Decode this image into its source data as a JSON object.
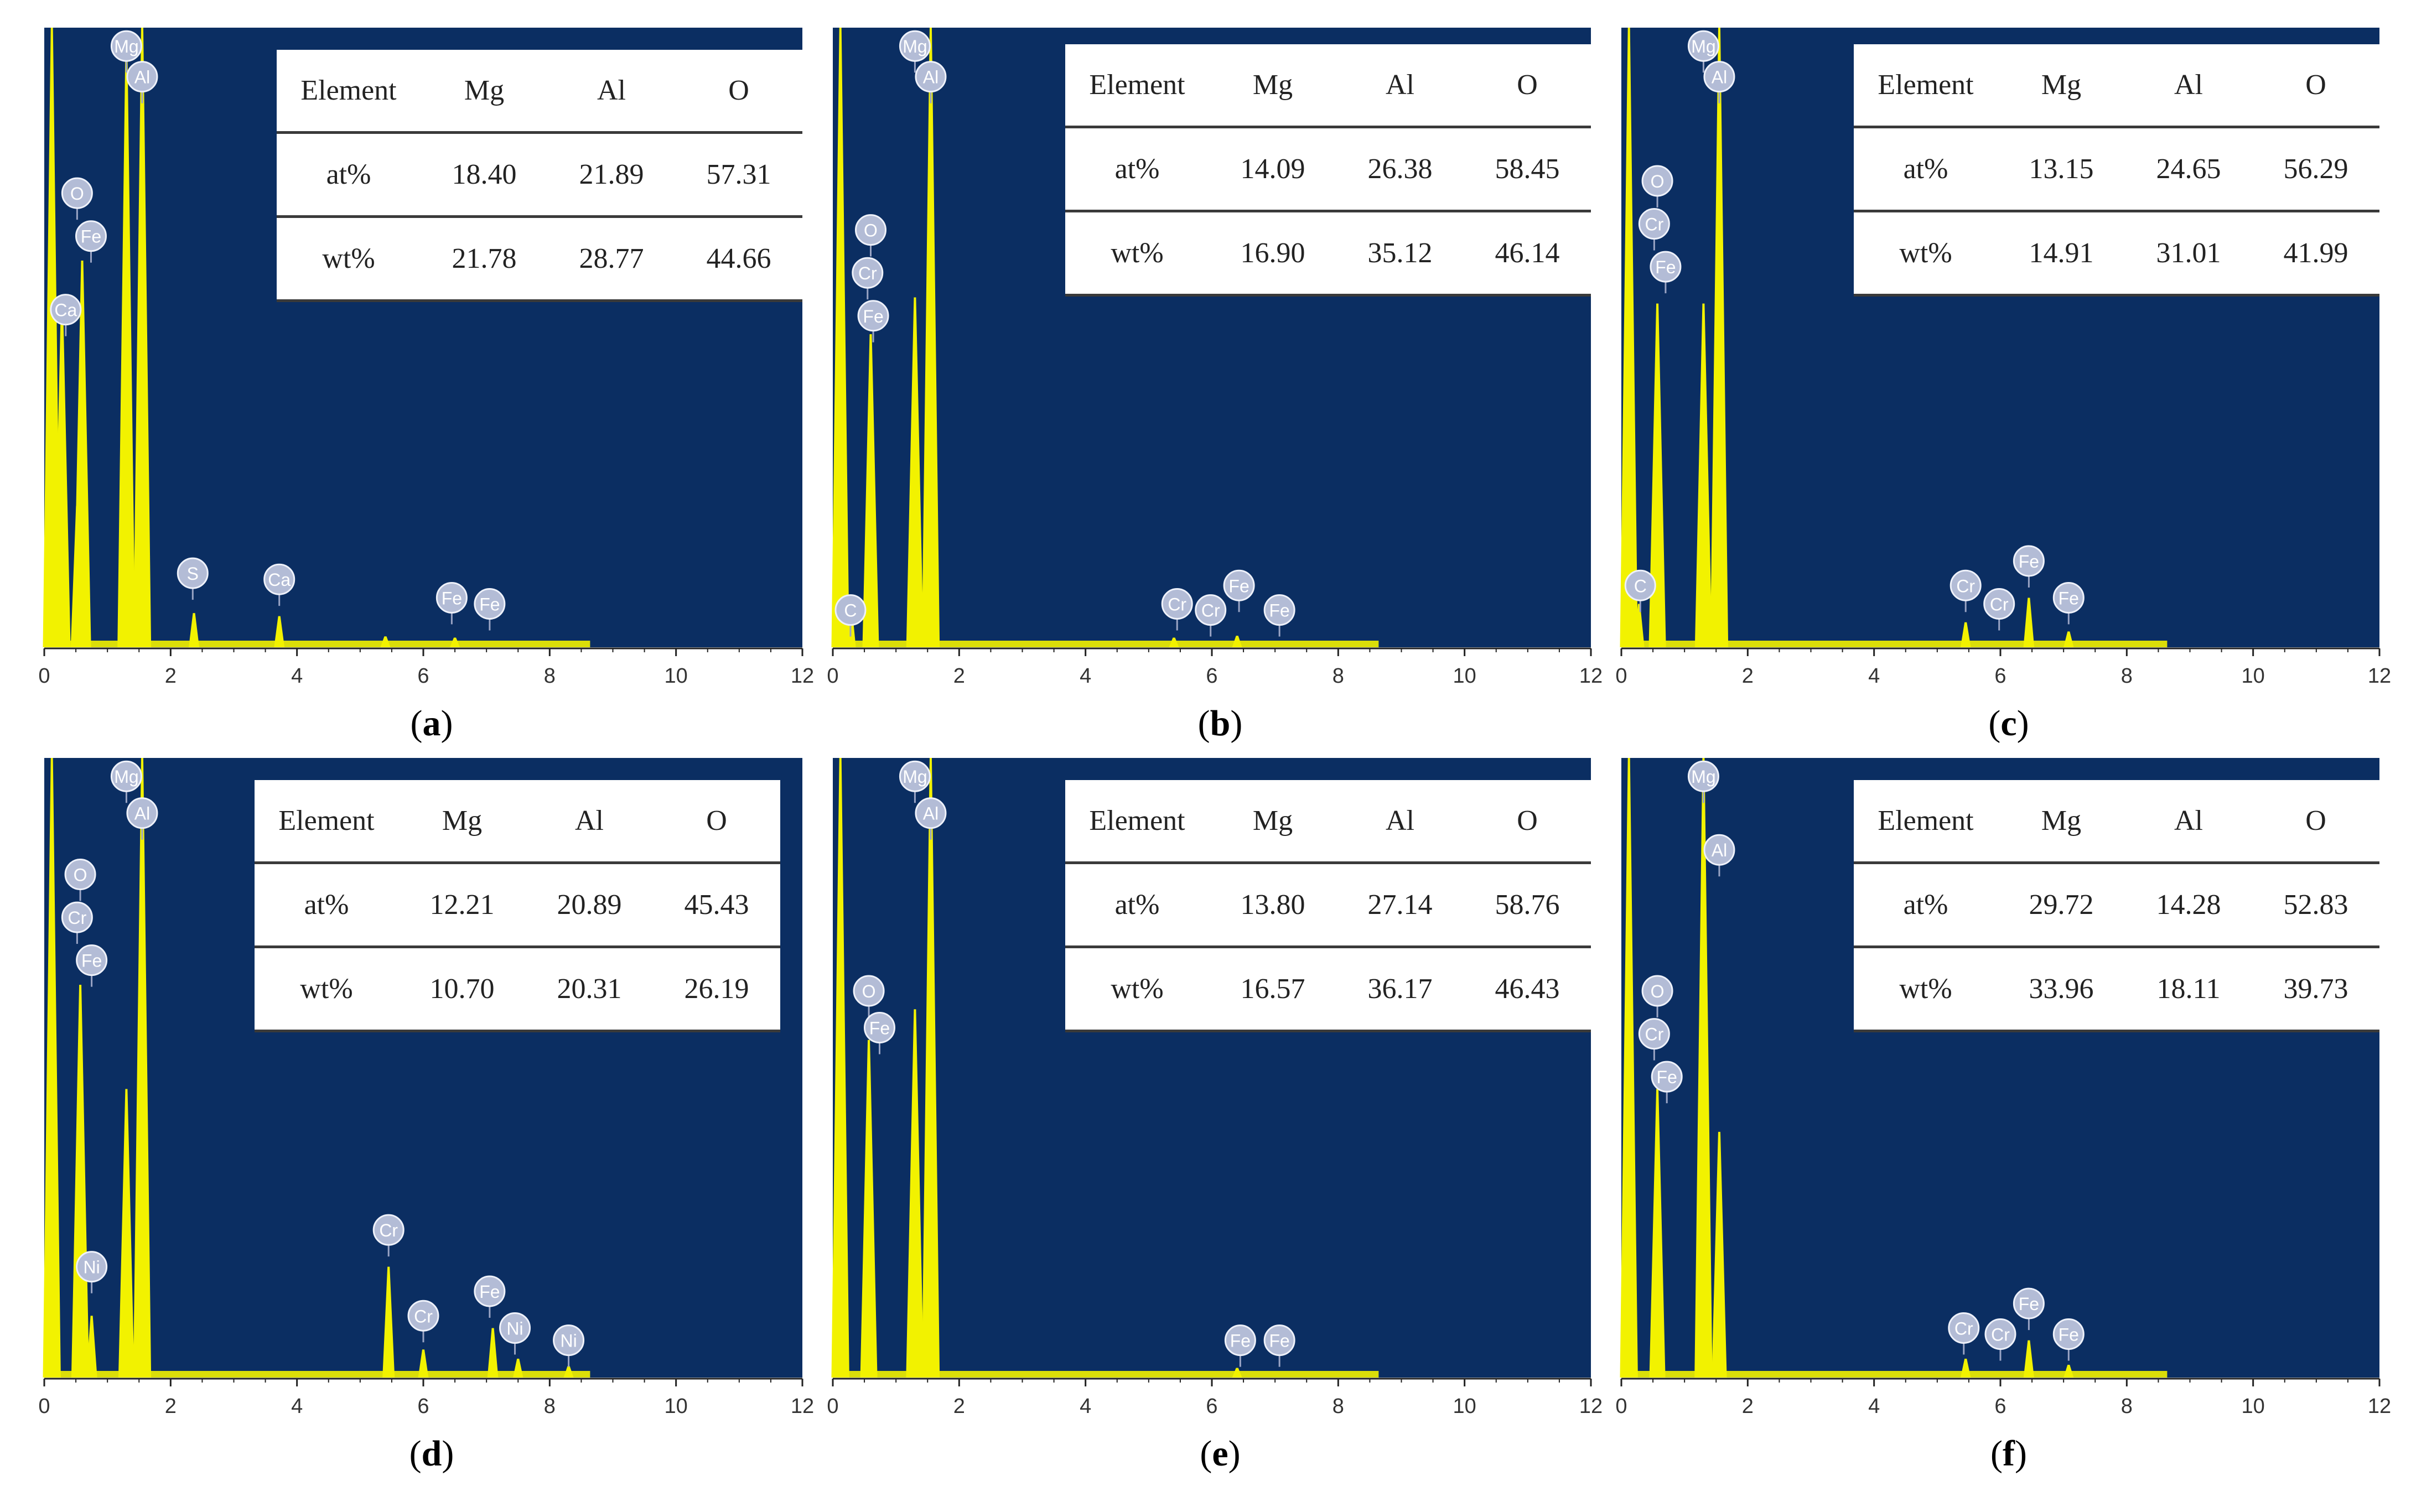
{
  "axis": {
    "ticks": [
      0,
      2,
      4,
      6,
      8,
      10,
      12
    ],
    "xlim": [
      0,
      12
    ]
  },
  "colors": {
    "plot_background": "#0b2e62",
    "spectrum": "#f2f200",
    "label_bubble": "#b3bcd6",
    "axis": "#222222"
  },
  "chart_data": [
    {
      "type": "area",
      "panel_label": "a",
      "x_label": "",
      "xlim": [
        0,
        12
      ],
      "peaks": [
        {
          "x": 0.12,
          "y": 100
        },
        {
          "x": 0.28,
          "y": 55
        },
        {
          "x": 0.52,
          "y": 22
        },
        {
          "x": 0.6,
          "y": 62
        },
        {
          "x": 1.3,
          "y": 96
        },
        {
          "x": 1.55,
          "y": 100
        },
        {
          "x": 2.37,
          "y": 4.5
        },
        {
          "x": 3.72,
          "y": 4
        },
        {
          "x": 5.4,
          "y": 0.7
        },
        {
          "x": 6.5,
          "y": 0.5
        }
      ],
      "peak_labels": [
        {
          "label": "Mg",
          "x": 1.3,
          "y": 97
        },
        {
          "label": "Al",
          "x": 1.55,
          "y": 92
        },
        {
          "label": "O",
          "x": 0.52,
          "y": 73
        },
        {
          "label": "Fe",
          "x": 0.74,
          "y": 66
        },
        {
          "label": "Ca",
          "x": 0.34,
          "y": 54
        },
        {
          "label": "S",
          "x": 2.35,
          "y": 11
        },
        {
          "label": "Ca",
          "x": 3.72,
          "y": 10
        },
        {
          "label": "Fe",
          "x": 6.45,
          "y": 7
        },
        {
          "label": "Fe",
          "x": 7.05,
          "y": 6
        }
      ],
      "table": {
        "header": [
          "Element",
          "Mg",
          "Al",
          "O"
        ],
        "rows": [
          {
            "label": "at%",
            "values": [
              "18.40",
              "21.89",
              "57.31"
            ]
          },
          {
            "label": "wt%",
            "values": [
              "21.78",
              "28.77",
              "44.66"
            ]
          }
        ]
      }
    },
    {
      "type": "area",
      "panel_label": "b",
      "x_label": "",
      "xlim": [
        0,
        12
      ],
      "peaks": [
        {
          "x": 0.12,
          "y": 100
        },
        {
          "x": 0.28,
          "y": 6
        },
        {
          "x": 0.6,
          "y": 50
        },
        {
          "x": 1.3,
          "y": 56
        },
        {
          "x": 1.55,
          "y": 100
        },
        {
          "x": 5.4,
          "y": 0.5
        },
        {
          "x": 6.4,
          "y": 0.8
        }
      ],
      "peak_labels": [
        {
          "label": "Mg",
          "x": 1.3,
          "y": 97
        },
        {
          "label": "Al",
          "x": 1.55,
          "y": 92
        },
        {
          "label": "O",
          "x": 0.6,
          "y": 67
        },
        {
          "label": "Cr",
          "x": 0.55,
          "y": 60
        },
        {
          "label": "Fe",
          "x": 0.64,
          "y": 53
        },
        {
          "label": "C",
          "x": 0.28,
          "y": 5
        },
        {
          "label": "Cr",
          "x": 5.45,
          "y": 6
        },
        {
          "label": "Cr",
          "x": 5.98,
          "y": 5
        },
        {
          "label": "Fe",
          "x": 6.43,
          "y": 9
        },
        {
          "label": "Fe",
          "x": 7.07,
          "y": 5
        }
      ],
      "table": {
        "header": [
          "Element",
          "Mg",
          "Al",
          "O"
        ],
        "rows": [
          {
            "label": "at%",
            "values": [
              "14.09",
              "26.38",
              "58.45"
            ]
          },
          {
            "label": "wt%",
            "values": [
              "16.90",
              "35.12",
              "46.14"
            ]
          }
        ]
      }
    },
    {
      "type": "area",
      "panel_label": "c",
      "x_label": "",
      "xlim": [
        0,
        12
      ],
      "peaks": [
        {
          "x": 0.12,
          "y": 100
        },
        {
          "x": 0.28,
          "y": 6
        },
        {
          "x": 0.57,
          "y": 55
        },
        {
          "x": 1.3,
          "y": 55
        },
        {
          "x": 1.55,
          "y": 100
        },
        {
          "x": 5.45,
          "y": 3
        },
        {
          "x": 6.45,
          "y": 7
        },
        {
          "x": 7.08,
          "y": 1.5
        }
      ],
      "peak_labels": [
        {
          "label": "Mg",
          "x": 1.3,
          "y": 97
        },
        {
          "label": "Al",
          "x": 1.55,
          "y": 92
        },
        {
          "label": "O",
          "x": 0.57,
          "y": 75
        },
        {
          "label": "Cr",
          "x": 0.52,
          "y": 68
        },
        {
          "label": "Fe",
          "x": 0.7,
          "y": 61
        },
        {
          "label": "C",
          "x": 0.3,
          "y": 9
        },
        {
          "label": "Cr",
          "x": 5.45,
          "y": 9
        },
        {
          "label": "Cr",
          "x": 5.98,
          "y": 6
        },
        {
          "label": "Fe",
          "x": 6.45,
          "y": 13
        },
        {
          "label": "Fe",
          "x": 7.08,
          "y": 7
        }
      ],
      "table": {
        "header": [
          "Element",
          "Mg",
          "Al",
          "O"
        ],
        "rows": [
          {
            "label": "at%",
            "values": [
              "13.15",
              "24.65",
              "56.29"
            ]
          },
          {
            "label": "wt%",
            "values": [
              "14.91",
              "31.01",
              "41.99"
            ]
          }
        ]
      }
    },
    {
      "type": "area",
      "panel_label": "d",
      "x_label": "",
      "xlim": [
        0,
        12
      ],
      "peaks": [
        {
          "x": 0.12,
          "y": 100
        },
        {
          "x": 0.57,
          "y": 63
        },
        {
          "x": 0.75,
          "y": 9
        },
        {
          "x": 1.3,
          "y": 46
        },
        {
          "x": 1.55,
          "y": 100
        },
        {
          "x": 5.45,
          "y": 17
        },
        {
          "x": 6.0,
          "y": 3.5
        },
        {
          "x": 7.1,
          "y": 7
        },
        {
          "x": 7.5,
          "y": 2
        },
        {
          "x": 8.3,
          "y": 0.8
        }
      ],
      "peak_labels": [
        {
          "label": "Mg",
          "x": 1.3,
          "y": 97
        },
        {
          "label": "Al",
          "x": 1.55,
          "y": 91
        },
        {
          "label": "O",
          "x": 0.57,
          "y": 81
        },
        {
          "label": "Cr",
          "x": 0.52,
          "y": 74
        },
        {
          "label": "Fe",
          "x": 0.75,
          "y": 67
        },
        {
          "label": "Ni",
          "x": 0.75,
          "y": 17
        },
        {
          "label": "Cr",
          "x": 5.45,
          "y": 23
        },
        {
          "label": "Cr",
          "x": 6.0,
          "y": 9
        },
        {
          "label": "Fe",
          "x": 7.05,
          "y": 13
        },
        {
          "label": "Ni",
          "x": 7.45,
          "y": 7
        },
        {
          "label": "Ni",
          "x": 8.3,
          "y": 5
        }
      ],
      "table": {
        "header": [
          "Element",
          "Mg",
          "Al",
          "O"
        ],
        "rows": [
          {
            "label": "at%",
            "values": [
              "12.21",
              "20.89",
              "45.43"
            ]
          },
          {
            "label": "wt%",
            "values": [
              "10.70",
              "20.31",
              "26.19"
            ]
          }
        ]
      }
    },
    {
      "type": "area",
      "panel_label": "e",
      "x_label": "",
      "xlim": [
        0,
        12
      ],
      "peaks": [
        {
          "x": 0.12,
          "y": 100
        },
        {
          "x": 0.57,
          "y": 54
        },
        {
          "x": 1.3,
          "y": 59
        },
        {
          "x": 1.55,
          "y": 100
        },
        {
          "x": 6.4,
          "y": 0.5
        }
      ],
      "peak_labels": [
        {
          "label": "Mg",
          "x": 1.3,
          "y": 97
        },
        {
          "label": "Al",
          "x": 1.55,
          "y": 91
        },
        {
          "label": "O",
          "x": 0.57,
          "y": 62
        },
        {
          "label": "Fe",
          "x": 0.74,
          "y": 56
        },
        {
          "label": "Fe",
          "x": 6.45,
          "y": 5
        },
        {
          "label": "Fe",
          "x": 7.07,
          "y": 5
        }
      ],
      "table": {
        "header": [
          "Element",
          "Mg",
          "Al",
          "O"
        ],
        "rows": [
          {
            "label": "at%",
            "values": [
              "13.80",
              "27.14",
              "58.76"
            ]
          },
          {
            "label": "wt%",
            "values": [
              "16.57",
              "36.17",
              "46.43"
            ]
          }
        ]
      }
    },
    {
      "type": "area",
      "panel_label": "f",
      "x_label": "",
      "xlim": [
        0,
        12
      ],
      "peaks": [
        {
          "x": 0.12,
          "y": 100
        },
        {
          "x": 0.57,
          "y": 46
        },
        {
          "x": 1.3,
          "y": 100
        },
        {
          "x": 1.55,
          "y": 39
        },
        {
          "x": 5.45,
          "y": 2
        },
        {
          "x": 6.45,
          "y": 5
        },
        {
          "x": 7.08,
          "y": 1
        }
      ],
      "peak_labels": [
        {
          "label": "Mg",
          "x": 1.3,
          "y": 97
        },
        {
          "label": "Al",
          "x": 1.55,
          "y": 85
        },
        {
          "label": "O",
          "x": 0.57,
          "y": 62
        },
        {
          "label": "Cr",
          "x": 0.52,
          "y": 55
        },
        {
          "label": "Fe",
          "x": 0.72,
          "y": 48
        },
        {
          "label": "Cr",
          "x": 5.42,
          "y": 7
        },
        {
          "label": "Cr",
          "x": 6.0,
          "y": 6
        },
        {
          "label": "Fe",
          "x": 6.45,
          "y": 11
        },
        {
          "label": "Fe",
          "x": 7.08,
          "y": 6
        }
      ],
      "table": {
        "header": [
          "Element",
          "Mg",
          "Al",
          "O"
        ],
        "rows": [
          {
            "label": "at%",
            "values": [
              "29.72",
              "14.28",
              "52.83"
            ]
          },
          {
            "label": "wt%",
            "values": [
              "33.96",
              "18.11",
              "39.73"
            ]
          }
        ]
      }
    }
  ]
}
